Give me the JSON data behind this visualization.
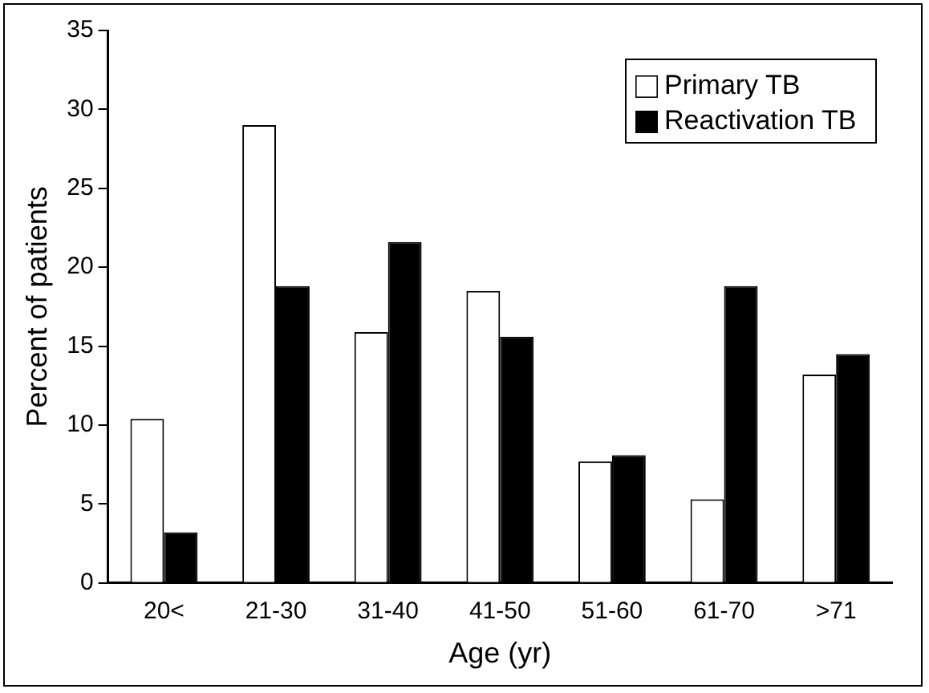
{
  "chart_data": {
    "type": "bar",
    "xlabel": "Age (yr)",
    "ylabel": "Percent of patients",
    "categories": [
      "20<",
      "21-30",
      "31-40",
      "41-50",
      "51-60",
      "61-70",
      ">71"
    ],
    "series": [
      {
        "name": "Primary TB",
        "color": "#ffffff",
        "values": [
          10.4,
          29.0,
          15.9,
          18.5,
          7.7,
          5.3,
          13.2
        ]
      },
      {
        "name": "Reactivation TB",
        "color": "#000000",
        "values": [
          3.2,
          18.8,
          21.6,
          15.6,
          8.1,
          18.8,
          14.5
        ]
      }
    ],
    "ylim": [
      0,
      35
    ],
    "yticks": [
      0,
      5,
      10,
      15,
      20,
      25,
      30,
      35
    ],
    "grid": false,
    "legend": "top right"
  }
}
